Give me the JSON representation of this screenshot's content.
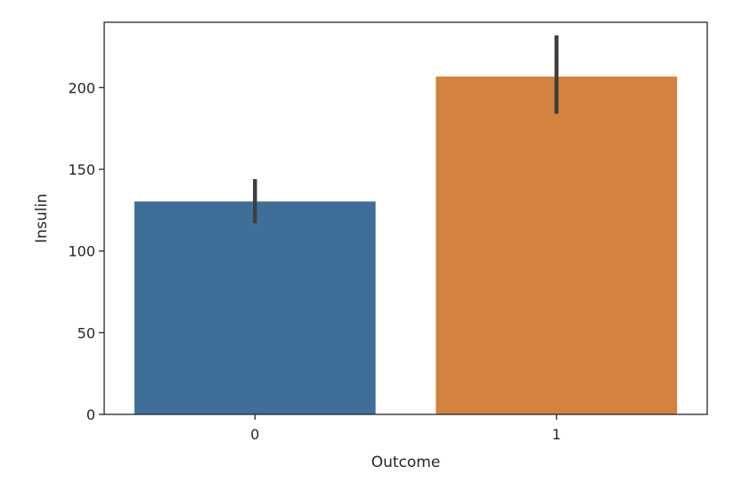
{
  "chart_data": {
    "type": "bar",
    "title": "",
    "xlabel": "Outcome",
    "ylabel": "Insulin",
    "categories": [
      "0",
      "1"
    ],
    "values": [
      130.3,
      206.8
    ],
    "error_low": [
      117.0,
      184.0
    ],
    "error_high": [
      144.0,
      232.0
    ],
    "bar_colors": [
      "#3f6f99",
      "#d4823f"
    ],
    "error_color": "#3f3f3f",
    "ylim": [
      0,
      240
    ],
    "yticks": [
      0,
      50,
      100,
      150,
      200
    ],
    "grid": false,
    "legend": "none"
  }
}
